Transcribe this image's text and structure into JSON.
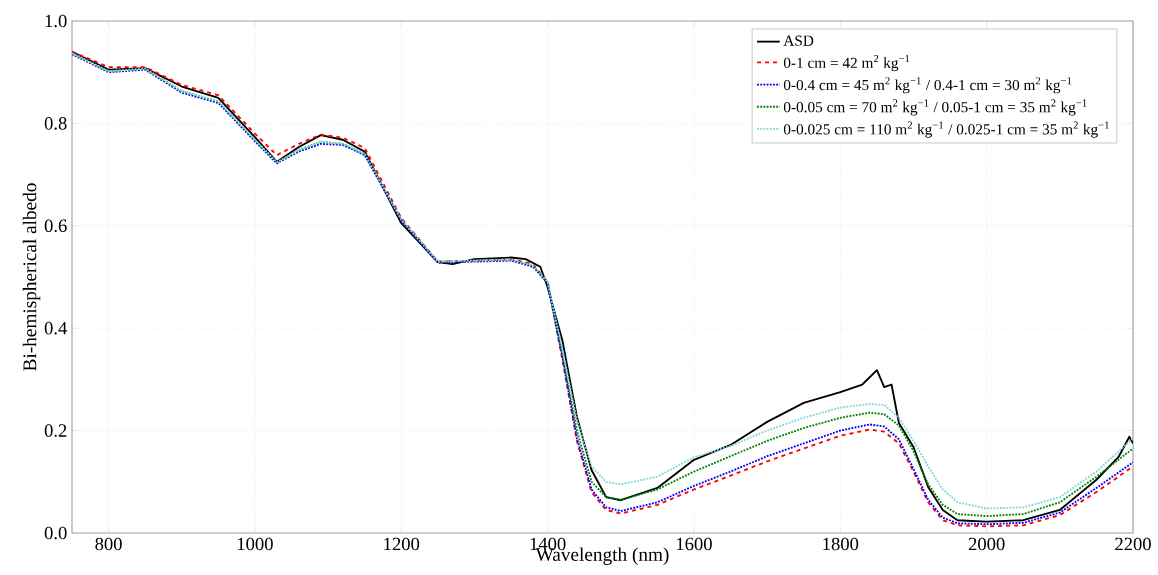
{
  "chart_data": {
    "type": "line",
    "xlabel": "Wavelength (nm)",
    "ylabel": "Bi-hemispherical albedo",
    "xlim": [
      750,
      2200
    ],
    "ylim": [
      0,
      1.0
    ],
    "xticks": [
      800,
      1000,
      1200,
      1400,
      1600,
      1800,
      2000,
      2200
    ],
    "yticks": [
      {
        "value": 0,
        "label": "0.0"
      },
      {
        "value": 0.2,
        "label": "0.2"
      },
      {
        "value": 0.4,
        "label": "0.4"
      },
      {
        "value": 0.6,
        "label": "0.6"
      },
      {
        "value": 0.8,
        "label": "0.8"
      },
      {
        "value": 1.0,
        "label": "1.0"
      }
    ],
    "grid": true,
    "legend": "top right",
    "marker": "none",
    "x": [
      750,
      800,
      850,
      900,
      950,
      1000,
      1030,
      1060,
      1090,
      1120,
      1150,
      1200,
      1250,
      1300,
      1350,
      1380,
      1400,
      1420,
      1440,
      1460,
      1480,
      1500,
      1550,
      1600,
      1650,
      1700,
      1750,
      1800,
      1840,
      1860,
      1880,
      1900,
      1920,
      1940,
      1960,
      2000,
      2050,
      2100,
      2150,
      2200
    ],
    "series": [
      {
        "name": "ASD",
        "color": "#000000",
        "line_style": "solid",
        "x": [
          750,
          800,
          850,
          900,
          950,
          1000,
          1030,
          1060,
          1090,
          1120,
          1150,
          1200,
          1250,
          1270,
          1300,
          1350,
          1370,
          1390,
          1400,
          1420,
          1440,
          1460,
          1480,
          1500,
          1550,
          1600,
          1650,
          1700,
          1750,
          1800,
          1830,
          1850,
          1860,
          1870,
          1880,
          1900,
          1920,
          1940,
          1960,
          2000,
          2050,
          2100,
          2150,
          2180,
          2195,
          2200
        ],
        "values": [
          0.94,
          0.905,
          0.908,
          0.872,
          0.85,
          0.773,
          0.725,
          0.754,
          0.777,
          0.768,
          0.745,
          0.605,
          0.529,
          0.525,
          0.535,
          0.538,
          0.535,
          0.52,
          0.48,
          0.377,
          0.227,
          0.123,
          0.07,
          0.064,
          0.088,
          0.143,
          0.172,
          0.217,
          0.254,
          0.275,
          0.29,
          0.318,
          0.285,
          0.29,
          0.215,
          0.168,
          0.09,
          0.045,
          0.025,
          0.022,
          0.025,
          0.045,
          0.104,
          0.148,
          0.188,
          0.175
        ]
      },
      {
        "name": "0-1 cm = 42 m$^{2}$ kg$^{−1}$",
        "color": "#ff0000",
        "line_style": "dashed",
        "values": [
          0.94,
          0.91,
          0.91,
          0.875,
          0.855,
          0.78,
          0.738,
          0.76,
          0.778,
          0.772,
          0.752,
          0.615,
          0.53,
          0.532,
          0.535,
          0.525,
          0.49,
          0.34,
          0.18,
          0.08,
          0.045,
          0.038,
          0.055,
          0.085,
          0.112,
          0.14,
          0.165,
          0.19,
          0.202,
          0.198,
          0.175,
          0.12,
          0.06,
          0.025,
          0.015,
          0.013,
          0.015,
          0.035,
          0.08,
          0.13
        ]
      },
      {
        "name": "0-0.4 cm = 45 m$^{2}$ kg$^{−1}$  / 0.4-1 cm = 30 m$^{2}$ kg$^{−1}$",
        "color": "#0000ff",
        "line_style": "dotted",
        "values": [
          0.935,
          0.9,
          0.905,
          0.86,
          0.84,
          0.765,
          0.722,
          0.745,
          0.76,
          0.758,
          0.738,
          0.61,
          0.528,
          0.53,
          0.532,
          0.52,
          0.488,
          0.345,
          0.185,
          0.085,
          0.05,
          0.043,
          0.06,
          0.092,
          0.12,
          0.15,
          0.175,
          0.2,
          0.212,
          0.208,
          0.183,
          0.125,
          0.065,
          0.03,
          0.019,
          0.017,
          0.02,
          0.04,
          0.088,
          0.138
        ]
      },
      {
        "name": "0-0.05 cm = 70 m$^{2}$ kg$^{−1}$  / 0.05-1 cm = 35 m$^{2}$ kg$^{−1}$",
        "color": "#008000",
        "line_style": "dotted",
        "values": [
          0.937,
          0.902,
          0.907,
          0.863,
          0.843,
          0.768,
          0.724,
          0.748,
          0.764,
          0.76,
          0.74,
          0.612,
          0.53,
          0.532,
          0.534,
          0.522,
          0.49,
          0.35,
          0.2,
          0.1,
          0.07,
          0.065,
          0.085,
          0.12,
          0.15,
          0.18,
          0.205,
          0.225,
          0.235,
          0.232,
          0.21,
          0.16,
          0.095,
          0.055,
          0.037,
          0.033,
          0.037,
          0.06,
          0.11,
          0.165
        ]
      },
      {
        "name": "0-0.025 cm = 110 m$^{2}$ kg$^{−1}$  / 0.025-1 cm = 35 m$^{2}$ kg$^{−1}$",
        "color": "#7fd6d6",
        "line_style": "dotted",
        "values": [
          0.937,
          0.902,
          0.907,
          0.863,
          0.843,
          0.768,
          0.724,
          0.748,
          0.764,
          0.76,
          0.74,
          0.612,
          0.53,
          0.532,
          0.534,
          0.522,
          0.49,
          0.36,
          0.22,
          0.13,
          0.1,
          0.095,
          0.11,
          0.148,
          0.17,
          0.2,
          0.225,
          0.245,
          0.252,
          0.25,
          0.225,
          0.18,
          0.13,
          0.085,
          0.06,
          0.048,
          0.05,
          0.07,
          0.12,
          0.185
        ]
      }
    ]
  }
}
